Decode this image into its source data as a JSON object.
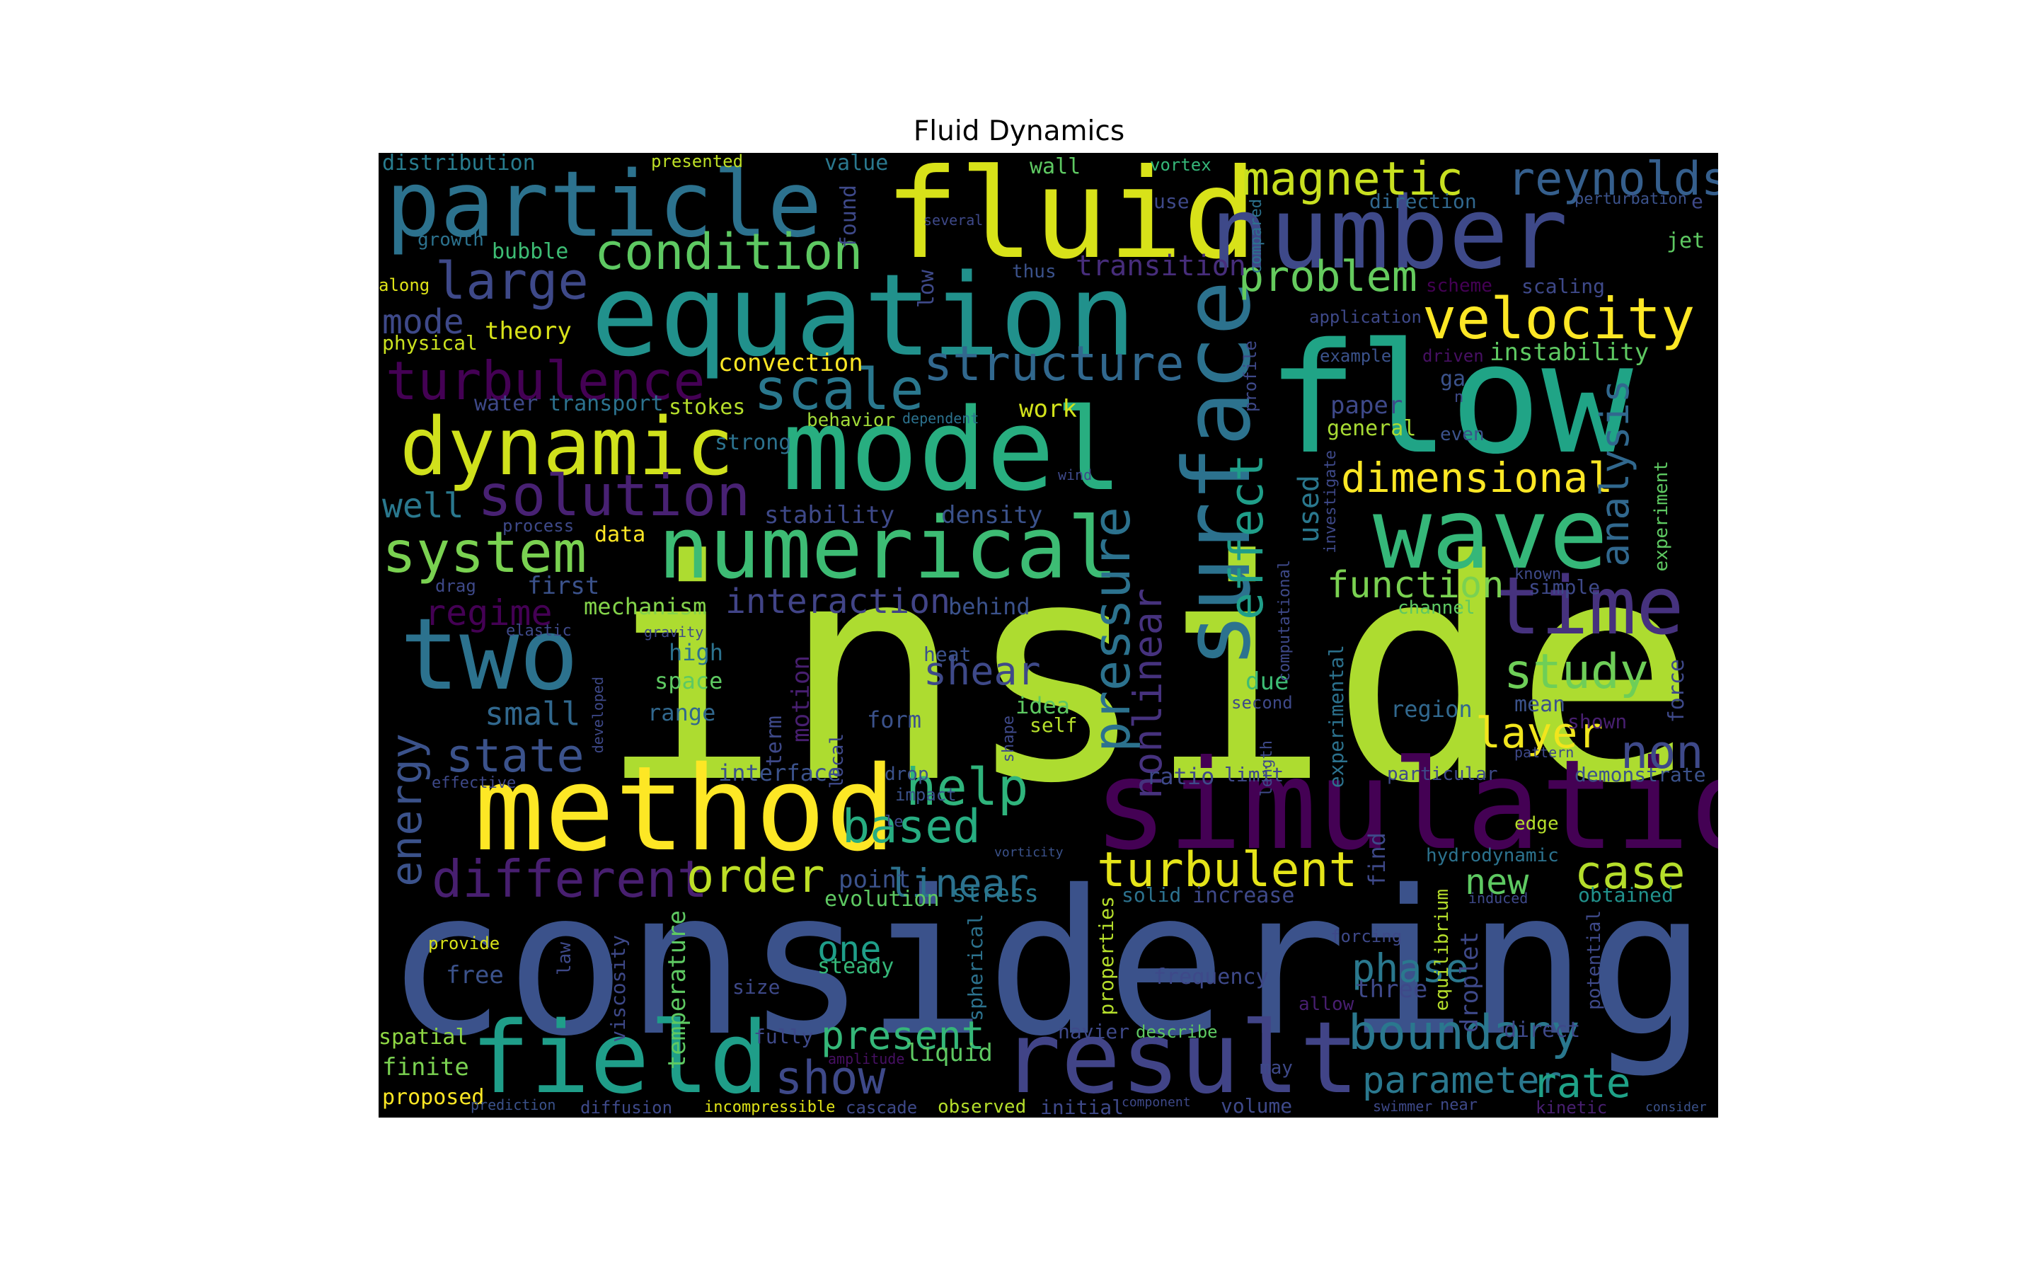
{
  "title": "Fluid Dynamics",
  "colors": {
    "background": "#000000",
    "page": "#ffffff"
  },
  "words": [
    {
      "text": "inside",
      "color": "#addc30"
    },
    {
      "text": "considering",
      "color": "#3b528b"
    },
    {
      "text": "flow",
      "color": "#20a486"
    },
    {
      "text": "model",
      "color": "#28ae80"
    },
    {
      "text": "simulation",
      "color": "#440154"
    },
    {
      "text": "method",
      "color": "#fde725"
    },
    {
      "text": "equation",
      "color": "#21918c"
    },
    {
      "text": "fluid",
      "color": "#d8e219"
    },
    {
      "text": "number",
      "color": "#3e4989"
    },
    {
      "text": "particle",
      "color": "#2c728e"
    },
    {
      "text": "result",
      "color": "#414487"
    },
    {
      "text": "two",
      "color": "#2c728e"
    },
    {
      "text": "wave",
      "color": "#35b779"
    },
    {
      "text": "numerical",
      "color": "#3dbc74"
    },
    {
      "text": "field",
      "color": "#1f9e89"
    },
    {
      "text": "surface",
      "color": "#2c728e"
    },
    {
      "text": "dynamic",
      "color": "#d0e11c"
    },
    {
      "text": "time",
      "color": "#46327e"
    },
    {
      "text": "velocity",
      "color": "#fde725"
    },
    {
      "text": "magnetic",
      "color": "#c8e020"
    },
    {
      "text": "reynolds",
      "color": "#355f8d"
    },
    {
      "text": "turbulence",
      "color": "#440154"
    },
    {
      "text": "solution",
      "color": "#482173"
    },
    {
      "text": "scale",
      "color": "#2a788e"
    },
    {
      "text": "structure",
      "color": "#31688e"
    },
    {
      "text": "condition",
      "color": "#5ec962"
    },
    {
      "text": "large",
      "color": "#3e4989"
    },
    {
      "text": "system",
      "color": "#7ad151"
    },
    {
      "text": "turbulent",
      "color": "#e5e419"
    },
    {
      "text": "boundary",
      "color": "#2a788e"
    },
    {
      "text": "pressure",
      "color": "#2c728e"
    },
    {
      "text": "effect",
      "color": "#1f9e89"
    },
    {
      "text": "different",
      "color": "#481f70"
    },
    {
      "text": "dimensional",
      "color": "#fde725"
    },
    {
      "text": "problem",
      "color": "#65cb5e"
    },
    {
      "text": "energy",
      "color": "#3b528b"
    },
    {
      "text": "analysis",
      "color": "#31688e"
    },
    {
      "text": "study",
      "color": "#6ece58"
    },
    {
      "text": "state",
      "color": "#3b528b"
    },
    {
      "text": "help",
      "color": "#2fb47c"
    },
    {
      "text": "order",
      "color": "#bddf26"
    },
    {
      "text": "case",
      "color": "#b5de2b"
    },
    {
      "text": "shear",
      "color": "#3e4989"
    },
    {
      "text": "layer",
      "color": "#f1e51d"
    },
    {
      "text": "non",
      "color": "#3e4989"
    },
    {
      "text": "based",
      "color": "#27ad81"
    },
    {
      "text": "show",
      "color": "#3e4989"
    },
    {
      "text": "present",
      "color": "#35b779"
    },
    {
      "text": "phase",
      "color": "#2a788e"
    },
    {
      "text": "parameter",
      "color": "#2a788e"
    },
    {
      "text": "rate",
      "color": "#1fa187"
    },
    {
      "text": "function",
      "color": "#7ad151"
    },
    {
      "text": "interaction",
      "color": "#414487"
    },
    {
      "text": "nonlinear",
      "color": "#46327e"
    },
    {
      "text": "regime",
      "color": "#440154"
    },
    {
      "text": "mode",
      "color": "#3e4989"
    },
    {
      "text": "linear",
      "color": "#2c728e"
    },
    {
      "text": "new",
      "color": "#5ec962"
    },
    {
      "text": "one",
      "color": "#1f9e89"
    },
    {
      "text": "instability",
      "color": "#5ec962"
    },
    {
      "text": "transition",
      "color": "#472d7b"
    },
    {
      "text": "well",
      "color": "#2a788e"
    },
    {
      "text": "used",
      "color": "#2a788e"
    },
    {
      "text": "small",
      "color": "#31688e"
    },
    {
      "text": "theory",
      "color": "#d8e219"
    },
    {
      "text": "stability",
      "color": "#3e4989"
    },
    {
      "text": "density",
      "color": "#3b528b"
    },
    {
      "text": "work",
      "color": "#d2e21b"
    },
    {
      "text": "convection",
      "color": "#fde725"
    },
    {
      "text": "mechanism",
      "color": "#84d44b"
    },
    {
      "text": "first",
      "color": "#3b528b"
    },
    {
      "text": "data",
      "color": "#fde725"
    },
    {
      "text": "paper",
      "color": "#3e4989"
    },
    {
      "text": "general",
      "color": "#a8db34"
    },
    {
      "text": "liquid",
      "color": "#5ec962"
    },
    {
      "text": "stress",
      "color": "#2a788e"
    },
    {
      "text": "increase",
      "color": "#3e4989"
    },
    {
      "text": "solid",
      "color": "#2c728e"
    },
    {
      "text": "evolution",
      "color": "#5ec962"
    },
    {
      "text": "point",
      "color": "#3b528b"
    },
    {
      "text": "steady",
      "color": "#35b779"
    },
    {
      "text": "three",
      "color": "#3e4989"
    },
    {
      "text": "frequency",
      "color": "#3e4989"
    },
    {
      "text": "free",
      "color": "#3b528b"
    },
    {
      "text": "spatial",
      "color": "#8fd744"
    },
    {
      "text": "finite",
      "color": "#7ad151"
    },
    {
      "text": "proposed",
      "color": "#fde725"
    },
    {
      "text": "distribution",
      "color": "#287c8e"
    },
    {
      "text": "presented",
      "color": "#bddf26"
    },
    {
      "text": "value",
      "color": "#2a788e"
    },
    {
      "text": "wall",
      "color": "#5ec962"
    },
    {
      "text": "vortex",
      "color": "#35b779"
    },
    {
      "text": "direction",
      "color": "#31688e"
    },
    {
      "text": "perturbation",
      "color": "#3b528b"
    },
    {
      "text": "growth",
      "color": "#2c728e"
    },
    {
      "text": "bubble",
      "color": "#3dbc74"
    },
    {
      "text": "jet",
      "color": "#5ec962"
    },
    {
      "text": "along",
      "color": "#dfe318"
    },
    {
      "text": "scheme",
      "color": "#440154"
    },
    {
      "text": "scaling",
      "color": "#3e4989"
    },
    {
      "text": "application",
      "color": "#3e4989"
    },
    {
      "text": "physical",
      "color": "#cae11f"
    },
    {
      "text": "example",
      "color": "#3b528b"
    },
    {
      "text": "driven",
      "color": "#471063"
    },
    {
      "text": "ga",
      "color": "#3b528b"
    },
    {
      "text": "water",
      "color": "#3e4989"
    },
    {
      "text": "transport",
      "color": "#2c728e"
    },
    {
      "text": "stokes",
      "color": "#b5de2b"
    },
    {
      "text": "behavior",
      "color": "#a0da39"
    },
    {
      "text": "dependent",
      "color": "#2c728e"
    },
    {
      "text": "strong",
      "color": "#2c728e"
    },
    {
      "text": "even",
      "color": "#3b528b"
    },
    {
      "text": "wind",
      "color": "#3e4989"
    },
    {
      "text": "process",
      "color": "#3e4989"
    },
    {
      "text": "drag",
      "color": "#3e4989"
    },
    {
      "text": "elastic",
      "color": "#3e4989"
    },
    {
      "text": "gravity",
      "color": "#3e4989"
    },
    {
      "text": "high",
      "color": "#2c728e"
    },
    {
      "text": "heat",
      "color": "#3b528b"
    },
    {
      "text": "behind",
      "color": "#3b528b"
    },
    {
      "text": "space",
      "color": "#5ec962"
    },
    {
      "text": "due",
      "color": "#3dbc74"
    },
    {
      "text": "second",
      "color": "#3e4989"
    },
    {
      "text": "range",
      "color": "#31688e"
    },
    {
      "text": "form",
      "color": "#3b528b"
    },
    {
      "text": "idea",
      "color": "#5ec962"
    },
    {
      "text": "self",
      "color": "#b5de2b"
    },
    {
      "text": "region",
      "color": "#31688e"
    },
    {
      "text": "mean",
      "color": "#3b528b"
    },
    {
      "text": "shown",
      "color": "#481f70"
    },
    {
      "text": "pattern",
      "color": "#3e4989"
    },
    {
      "text": "effective",
      "color": "#3e4989"
    },
    {
      "text": "interface",
      "color": "#3b528b"
    },
    {
      "text": "drop",
      "color": "#3b528b"
    },
    {
      "text": "impact",
      "color": "#3b528b"
    },
    {
      "text": "ratio",
      "color": "#3e4989"
    },
    {
      "text": "limit",
      "color": "#3e4989"
    },
    {
      "text": "particular",
      "color": "#3e4989"
    },
    {
      "text": "demonstrate",
      "color": "#3b528b"
    },
    {
      "text": "edge",
      "color": "#b5de2b"
    },
    {
      "text": "hydrodynamic",
      "color": "#2c728e"
    },
    {
      "text": "vorticity",
      "color": "#3b528b"
    },
    {
      "text": "obtained",
      "color": "#21918c"
    },
    {
      "text": "induced",
      "color": "#3e4989"
    },
    {
      "text": "provide",
      "color": "#d8e219"
    },
    {
      "text": "forcing",
      "color": "#3e4989"
    },
    {
      "text": "size",
      "color": "#3e4989"
    },
    {
      "text": "allow",
      "color": "#481f70"
    },
    {
      "text": "direct",
      "color": "#3e4989"
    },
    {
      "text": "fully",
      "color": "#3e4989"
    },
    {
      "text": "navier",
      "color": "#3e4989"
    },
    {
      "text": "describe",
      "color": "#5ec962"
    },
    {
      "text": "may",
      "color": "#3e4989"
    },
    {
      "text": "amplitude",
      "color": "#471063"
    },
    {
      "text": "prediction",
      "color": "#3b528b"
    },
    {
      "text": "diffusion",
      "color": "#3e4989"
    },
    {
      "text": "incompressible",
      "color": "#dfe318"
    },
    {
      "text": "cascade",
      "color": "#3e4989"
    },
    {
      "text": "observed",
      "color": "#b5de2b"
    },
    {
      "text": "initial",
      "color": "#3e4989"
    },
    {
      "text": "component",
      "color": "#3e4989"
    },
    {
      "text": "volume",
      "color": "#3e4989"
    },
    {
      "text": "swimmer",
      "color": "#3e4989"
    },
    {
      "text": "near",
      "color": "#3e4989"
    },
    {
      "text": "kinetic",
      "color": "#481f70"
    },
    {
      "text": "consider",
      "color": "#3b528b"
    },
    {
      "text": "use",
      "color": "#3e4989"
    },
    {
      "text": "several",
      "color": "#3e4989"
    },
    {
      "text": "thus",
      "color": "#3b528b"
    },
    {
      "text": "known",
      "color": "#3e4989"
    },
    {
      "text": "simple",
      "color": "#3e4989"
    },
    {
      "text": "channel",
      "color": "#5ec962"
    },
    {
      "text": "found",
      "color": "#3e4989"
    },
    {
      "text": "low",
      "color": "#3e4989"
    },
    {
      "text": "compared",
      "color": "#2c728e"
    },
    {
      "text": "profile",
      "color": "#3e4989"
    },
    {
      "text": "investigate",
      "color": "#3e4989"
    },
    {
      "text": "computational",
      "color": "#3e4989"
    },
    {
      "text": "experimental",
      "color": "#2c728e"
    },
    {
      "text": "length",
      "color": "#3e4989"
    },
    {
      "text": "experiment",
      "color": "#5ec962"
    },
    {
      "text": "force",
      "color": "#3e4989"
    },
    {
      "text": "find",
      "color": "#3e4989"
    },
    {
      "text": "equilibrium",
      "color": "#b5de2b"
    },
    {
      "text": "droplet",
      "color": "#3e4989"
    },
    {
      "text": "potential",
      "color": "#3e4989"
    },
    {
      "text": "properties",
      "color": "#b5de2b"
    },
    {
      "text": "spherical",
      "color": "#2c728e"
    },
    {
      "text": "shape",
      "color": "#3e4989"
    },
    {
      "text": "local",
      "color": "#3e4989"
    },
    {
      "text": "temperature",
      "color": "#5ec962"
    },
    {
      "text": "viscosity",
      "color": "#3e4989"
    },
    {
      "text": "law",
      "color": "#3e4989"
    },
    {
      "text": "term",
      "color": "#3e4989"
    },
    {
      "text": "motion",
      "color": "#481f70"
    },
    {
      "text": "developed",
      "color": "#3e4989"
    },
    {
      "text": "le",
      "color": "#3e4989"
    },
    {
      "text": "n",
      "color": "#3e4989"
    },
    {
      "text": "e",
      "color": "#3e4989"
    }
  ]
}
